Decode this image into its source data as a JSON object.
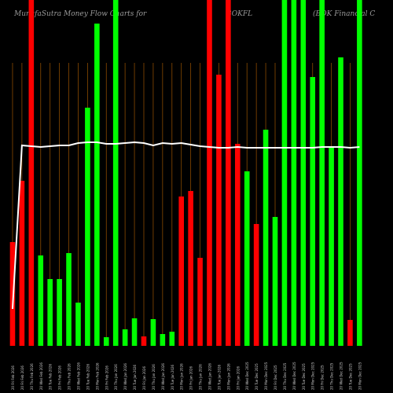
{
  "header": {
    "title": "MunafaSutra  Money Flow  Charts for",
    "symbol": "BOKFL",
    "company": "(BOK Financial C"
  },
  "chart_data": {
    "type": "bar",
    "title": "MunafaSutra Money Flow Charts for BOKFL (BOK Financial C",
    "ylim": [
      0,
      440
    ],
    "series": [
      {
        "values": [
          132,
          210,
          440,
          115,
          85,
          85,
          118,
          55,
          303,
          410,
          11,
          440,
          21,
          35,
          12,
          34,
          15,
          18,
          190,
          197,
          112,
          440,
          345,
          440,
          257,
          222,
          155,
          275,
          164,
          440,
          440,
          440,
          342,
          440,
          253,
          367,
          33,
          440
        ],
        "colors": [
          "red",
          "red",
          "red",
          "lime",
          "lime",
          "lime",
          "lime",
          "lime",
          "lime",
          "lime",
          "lime",
          "lime",
          "lime",
          "lime",
          "red",
          "lime",
          "lime",
          "lime",
          "red",
          "red",
          "red",
          "red",
          "red",
          "red",
          "red",
          "lime",
          "red",
          "lime",
          "lime",
          "lime",
          "lime",
          "lime",
          "lime",
          "lime",
          "lime",
          "lime",
          "red",
          "lime"
        ]
      },
      {
        "type": "line",
        "values": [
          47,
          255,
          254,
          253,
          254,
          255,
          255,
          258,
          259,
          259,
          257,
          257,
          258,
          259,
          258,
          255,
          258,
          257,
          258,
          256,
          254,
          253,
          252,
          252,
          253,
          252,
          252,
          252,
          252,
          252,
          252,
          252,
          252,
          253,
          253,
          253,
          252,
          253
        ]
      }
    ],
    "categories": [
      "20 Fri Feb 2026",
      "20 Fri Feb 2026",
      "20 Thu Feb 2026",
      "20 Wed Feb 2026",
      "20 Tue Feb 2026",
      "20 Fri Feb 2026",
      "20 Thu Feb 2026",
      "20 Wed Feb 2026",
      "20 Tue Feb 2026",
      "20 Mon Feb 2026",
      "20 Fri Feb 2026",
      "20 Thu Jan 2026",
      "20 Wed Jan 2026",
      "20 Tue Jan 2026",
      "20 Fri Jan 2026",
      "20 Thu Jan 2026",
      "20 Wed Jan 2026",
      "20 Tue Jan 2026",
      "20 Mon Jan 2026",
      "20 Fri Jan 2026",
      "20 Thu Jan 2026",
      "20 Wed Jan 2026",
      "20 Tue Jan 2026",
      "20 Mon Jan 2026",
      "20 Fri Jan 2026",
      "20 Wed Dec 2025",
      "20 Tue Dec 2025",
      "20 Mon Dec 2025",
      "20 Fri Dec 2025",
      "20 Thu Dec 2025",
      "20 Wed Dec 2025",
      "20 Tue Dec 2025",
      "20 Mon Dec 2025",
      "20 Fri Dec 2025",
      "20 Thu Dec 2025",
      "20 Wed Dec 2025",
      "20 Tue Dec 2025",
      "20 Mon Dec 2025"
    ],
    "grid": "vertical",
    "grid_color": "#8a4a00",
    "background": "#000000",
    "bar_up_color": "#00ff00",
    "bar_down_color": "#ff0000",
    "line_color": "#ffffff"
  }
}
